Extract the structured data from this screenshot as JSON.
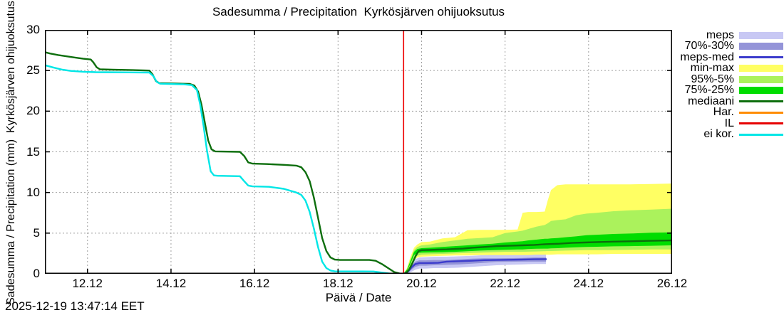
{
  "title": "Sadesumma / Precipitation  Kyrkösjärven ohijuoksutus",
  "timestamp": "2025-12-19 13:47:14 EET",
  "chart_data": {
    "type": "line",
    "title": "Sadesumma / Precipitation  Kyrkösjärven ohijuoksutus",
    "xlabel": "Päivä / Date",
    "ylabel": "Sadesumma / Precipitation (mm)  Kyrkösjärven ohijuoksutus",
    "xlim": [
      10.98,
      26.0
    ],
    "ylim": [
      0,
      30
    ],
    "grid": true,
    "grid_color": "#a0a0a0",
    "border_color": "#000000",
    "xticks": [
      {
        "v": 12,
        "label": "12.12"
      },
      {
        "v": 14,
        "label": "14.12"
      },
      {
        "v": 16,
        "label": "16.12"
      },
      {
        "v": 18,
        "label": "18.12"
      },
      {
        "v": 20,
        "label": "20.12"
      },
      {
        "v": 22,
        "label": "22.12"
      },
      {
        "v": 24,
        "label": "24.12"
      },
      {
        "v": 26,
        "label": "26.12"
      }
    ],
    "yticks": [
      {
        "v": 0,
        "label": "0"
      },
      {
        "v": 5,
        "label": "5"
      },
      {
        "v": 10,
        "label": "10"
      },
      {
        "v": 15,
        "label": "15"
      },
      {
        "v": 20,
        "label": "20"
      },
      {
        "v": 25,
        "label": "25"
      },
      {
        "v": 30,
        "label": "30"
      }
    ],
    "now_line": {
      "x": 19.57,
      "color": "#ee0000"
    },
    "series": [
      {
        "name": "meps",
        "type": "band",
        "color": "#c8c8f4",
        "x": [
          19.6,
          19.68,
          19.76,
          19.85,
          19.95,
          20.1,
          20.3,
          20.6,
          20.9,
          21.2,
          21.5,
          21.8,
          22.1,
          22.4,
          22.7,
          22.98
        ],
        "hi": [
          0.15,
          0.6,
          1.3,
          1.8,
          2.0,
          2.05,
          2.1,
          2.1,
          2.15,
          2.2,
          2.3,
          2.35,
          2.35,
          2.4,
          2.45,
          2.45
        ],
        "lo": [
          0.0,
          0.05,
          0.25,
          0.5,
          0.65,
          0.65,
          0.7,
          0.7,
          0.75,
          0.85,
          0.95,
          1.05,
          1.1,
          1.15,
          1.2,
          1.2
        ]
      },
      {
        "name": "70%-30%",
        "type": "band",
        "color": "#9494d8",
        "x": [
          19.6,
          19.68,
          19.76,
          19.85,
          19.95,
          20.1,
          20.3,
          20.6,
          20.9,
          21.2,
          21.5,
          21.8,
          22.1,
          22.4,
          22.7,
          22.98
        ],
        "hi": [
          0.1,
          0.4,
          1.0,
          1.5,
          1.65,
          1.65,
          1.7,
          1.7,
          1.78,
          1.85,
          1.9,
          1.9,
          1.92,
          1.95,
          2.0,
          2.0
        ],
        "lo": [
          0.0,
          0.15,
          0.5,
          0.85,
          1.0,
          1.0,
          1.05,
          1.1,
          1.15,
          1.25,
          1.35,
          1.45,
          1.48,
          1.5,
          1.5,
          1.5
        ]
      },
      {
        "name": "min-max",
        "type": "band",
        "color": "#ffff63",
        "x": [
          19.57,
          19.65,
          19.73,
          19.82,
          19.9,
          20.0,
          20.2,
          20.5,
          20.8,
          21.1,
          21.4,
          21.7,
          22.0,
          22.3,
          22.42,
          22.55,
          22.75,
          22.95,
          23.02,
          23.1,
          23.25,
          23.45,
          23.7,
          23.95,
          24.2,
          24.6,
          25.0,
          25.5,
          26.0
        ],
        "hi": [
          0.05,
          0.7,
          2.0,
          3.2,
          3.6,
          3.9,
          3.95,
          4.35,
          4.5,
          5.35,
          5.4,
          5.4,
          5.4,
          5.45,
          7.5,
          7.6,
          7.6,
          7.65,
          9.0,
          10.3,
          10.9,
          11.0,
          11.0,
          11.0,
          11.0,
          11.0,
          11.0,
          11.05,
          11.1
        ],
        "lo": [
          0.0,
          0.3,
          1.0,
          1.7,
          2.0,
          2.1,
          2.15,
          2.2,
          2.25,
          2.25,
          2.3,
          2.3,
          2.3,
          2.3,
          2.3,
          2.3,
          2.35,
          2.35,
          2.35,
          2.35,
          2.4,
          2.4,
          2.4,
          2.4,
          2.4,
          2.45,
          2.45,
          2.45,
          2.45
        ]
      },
      {
        "name": "95%-5%",
        "type": "band",
        "color": "#abf25c",
        "x": [
          19.57,
          19.65,
          19.73,
          19.82,
          19.9,
          20.0,
          20.2,
          20.5,
          20.8,
          21.1,
          21.4,
          21.7,
          22.0,
          22.3,
          22.42,
          22.55,
          22.75,
          22.95,
          23.02,
          23.1,
          23.25,
          23.45,
          23.7,
          23.95,
          24.2,
          24.6,
          25.0,
          25.5,
          26.0
        ],
        "hi": [
          0.05,
          0.6,
          1.7,
          2.9,
          3.3,
          3.5,
          3.6,
          3.9,
          4.1,
          4.3,
          4.4,
          4.5,
          5.0,
          5.2,
          5.3,
          5.5,
          5.8,
          6.0,
          6.2,
          6.5,
          6.6,
          6.7,
          7.2,
          7.4,
          7.5,
          7.7,
          7.8,
          7.9,
          8.0
        ],
        "lo": [
          0.0,
          0.25,
          0.9,
          1.9,
          2.2,
          2.35,
          2.4,
          2.45,
          2.5,
          2.55,
          2.6,
          2.65,
          2.7,
          2.7,
          2.7,
          2.72,
          2.75,
          2.78,
          2.8,
          2.8,
          2.82,
          2.85,
          2.88,
          2.9,
          2.9,
          2.92,
          2.95,
          3.0,
          3.0
        ]
      },
      {
        "name": "75%-25%",
        "type": "band",
        "color": "#00dd00",
        "x": [
          19.57,
          19.65,
          19.73,
          19.82,
          19.9,
          20.0,
          20.2,
          20.5,
          20.8,
          21.1,
          21.4,
          21.7,
          22.0,
          22.3,
          22.42,
          22.55,
          22.75,
          22.95,
          23.02,
          23.1,
          23.25,
          23.45,
          23.7,
          23.95,
          24.2,
          24.6,
          25.0,
          25.5,
          26.0
        ],
        "hi": [
          0.05,
          0.5,
          1.5,
          2.7,
          3.05,
          3.15,
          3.2,
          3.3,
          3.4,
          3.5,
          3.6,
          3.7,
          3.85,
          3.95,
          4.0,
          4.1,
          4.2,
          4.3,
          4.3,
          4.35,
          4.4,
          4.5,
          4.6,
          4.75,
          4.8,
          4.9,
          4.95,
          5.05,
          5.1
        ],
        "lo": [
          0.0,
          0.35,
          1.2,
          2.3,
          2.55,
          2.6,
          2.62,
          2.65,
          2.7,
          2.78,
          2.85,
          2.9,
          2.95,
          3.0,
          3.0,
          3.05,
          3.08,
          3.1,
          3.1,
          3.12,
          3.15,
          3.2,
          3.25,
          3.3,
          3.32,
          3.38,
          3.4,
          3.45,
          3.5
        ]
      },
      {
        "name": "meps-med",
        "type": "line",
        "color": "#3c3ccc",
        "width": 2.4,
        "points": [
          [
            19.6,
            0.05
          ],
          [
            19.68,
            0.3
          ],
          [
            19.76,
            0.8
          ],
          [
            19.85,
            1.2
          ],
          [
            19.95,
            1.32
          ],
          [
            20.1,
            1.32
          ],
          [
            20.4,
            1.35
          ],
          [
            20.6,
            1.5
          ],
          [
            20.9,
            1.55
          ],
          [
            21.2,
            1.6
          ],
          [
            21.5,
            1.68
          ],
          [
            21.8,
            1.7
          ],
          [
            22.1,
            1.72
          ],
          [
            22.4,
            1.75
          ],
          [
            22.7,
            1.78
          ],
          [
            22.98,
            1.8
          ]
        ]
      },
      {
        "name": "mediaani",
        "type": "line",
        "color": "#0d6e0d",
        "width": 2.4,
        "points": [
          [
            10.98,
            27.25
          ],
          [
            11.1,
            27.1
          ],
          [
            11.3,
            26.9
          ],
          [
            11.5,
            26.75
          ],
          [
            11.7,
            26.6
          ],
          [
            11.9,
            26.45
          ],
          [
            12.08,
            26.35
          ],
          [
            12.14,
            26.0
          ],
          [
            12.22,
            25.4
          ],
          [
            12.3,
            25.15
          ],
          [
            12.6,
            25.1
          ],
          [
            13.1,
            25.05
          ],
          [
            13.48,
            25.0
          ],
          [
            13.56,
            24.5
          ],
          [
            13.64,
            23.7
          ],
          [
            13.72,
            23.45
          ],
          [
            14.1,
            23.4
          ],
          [
            14.45,
            23.35
          ],
          [
            14.56,
            23.15
          ],
          [
            14.65,
            22.4
          ],
          [
            14.73,
            20.8
          ],
          [
            14.81,
            18.6
          ],
          [
            14.89,
            16.4
          ],
          [
            14.97,
            15.3
          ],
          [
            15.06,
            15.05
          ],
          [
            15.65,
            15.0
          ],
          [
            15.75,
            14.5
          ],
          [
            15.85,
            13.7
          ],
          [
            15.95,
            13.55
          ],
          [
            16.3,
            13.5
          ],
          [
            16.7,
            13.4
          ],
          [
            17.0,
            13.3
          ],
          [
            17.12,
            13.1
          ],
          [
            17.22,
            12.5
          ],
          [
            17.32,
            11.4
          ],
          [
            17.42,
            9.4
          ],
          [
            17.52,
            6.9
          ],
          [
            17.62,
            4.4
          ],
          [
            17.72,
            2.8
          ],
          [
            17.82,
            2.0
          ],
          [
            17.92,
            1.75
          ],
          [
            18.05,
            1.7
          ],
          [
            18.75,
            1.7
          ],
          [
            18.9,
            1.6
          ],
          [
            19.05,
            1.2
          ],
          [
            19.2,
            0.7
          ],
          [
            19.35,
            0.2
          ],
          [
            19.48,
            0.03
          ],
          [
            19.57,
            0.0
          ],
          [
            19.63,
            0.1
          ],
          [
            19.7,
            0.5
          ],
          [
            19.78,
            1.3
          ],
          [
            19.86,
            2.2
          ],
          [
            19.93,
            2.8
          ],
          [
            20.0,
            2.9
          ],
          [
            20.2,
            2.93
          ],
          [
            20.4,
            2.97
          ],
          [
            20.6,
            3.0
          ],
          [
            20.8,
            3.05
          ],
          [
            21.0,
            3.1
          ],
          [
            21.2,
            3.2
          ],
          [
            21.5,
            3.3
          ],
          [
            21.8,
            3.4
          ],
          [
            22.1,
            3.45
          ],
          [
            22.4,
            3.5
          ],
          [
            22.7,
            3.55
          ],
          [
            23.0,
            3.65
          ],
          [
            23.3,
            3.7
          ],
          [
            23.6,
            3.8
          ],
          [
            23.9,
            3.85
          ],
          [
            24.2,
            3.9
          ],
          [
            24.6,
            3.95
          ],
          [
            25.0,
            4.0
          ],
          [
            25.4,
            4.05
          ],
          [
            26.0,
            4.1
          ]
        ]
      },
      {
        "name": "ei kor.",
        "type": "line",
        "color": "#00e6e6",
        "width": 2.4,
        "points": [
          [
            10.98,
            25.65
          ],
          [
            11.2,
            25.35
          ],
          [
            11.4,
            25.1
          ],
          [
            11.6,
            24.95
          ],
          [
            11.9,
            24.85
          ],
          [
            12.2,
            24.8
          ],
          [
            13.0,
            24.77
          ],
          [
            13.48,
            24.75
          ],
          [
            13.58,
            24.3
          ],
          [
            13.66,
            23.6
          ],
          [
            13.74,
            23.38
          ],
          [
            14.3,
            23.3
          ],
          [
            14.5,
            23.2
          ],
          [
            14.62,
            22.6
          ],
          [
            14.7,
            20.8
          ],
          [
            14.78,
            18.2
          ],
          [
            14.86,
            15.2
          ],
          [
            14.95,
            12.6
          ],
          [
            15.03,
            12.1
          ],
          [
            15.12,
            12.05
          ],
          [
            15.65,
            12.0
          ],
          [
            15.75,
            11.4
          ],
          [
            15.85,
            10.85
          ],
          [
            15.95,
            10.75
          ],
          [
            16.35,
            10.7
          ],
          [
            16.7,
            10.45
          ],
          [
            17.0,
            10.0
          ],
          [
            17.12,
            9.7
          ],
          [
            17.22,
            9.0
          ],
          [
            17.32,
            7.6
          ],
          [
            17.42,
            5.6
          ],
          [
            17.52,
            3.3
          ],
          [
            17.62,
            1.5
          ],
          [
            17.72,
            0.7
          ],
          [
            17.82,
            0.4
          ],
          [
            17.92,
            0.3
          ],
          [
            18.85,
            0.28
          ],
          [
            19.05,
            0.15
          ],
          [
            19.25,
            0.03
          ],
          [
            19.4,
            0.0
          ],
          [
            19.57,
            0.0
          ]
        ]
      }
    ],
    "legend": {
      "position": "right-outside",
      "items": [
        {
          "label": "meps",
          "swatch": "band",
          "color": "#c8c8f4"
        },
        {
          "label": "70%-30%",
          "swatch": "band",
          "color": "#9494d8"
        },
        {
          "label": "meps-med",
          "swatch": "line",
          "color": "#3c3ccc"
        },
        {
          "label": "min-max",
          "swatch": "band",
          "color": "#ffff63"
        },
        {
          "label": "95%-5%",
          "swatch": "band",
          "color": "#abf25c"
        },
        {
          "label": "75%-25%",
          "swatch": "band",
          "color": "#00dd00"
        },
        {
          "label": "mediaani",
          "swatch": "line",
          "color": "#0d6e0d"
        },
        {
          "label": "Har.",
          "swatch": "line",
          "color": "#ff8c00"
        },
        {
          "label": "IL",
          "swatch": "line",
          "color": "#e60000"
        },
        {
          "label": "ei kor.",
          "swatch": "line",
          "color": "#00e6e6"
        }
      ]
    }
  }
}
